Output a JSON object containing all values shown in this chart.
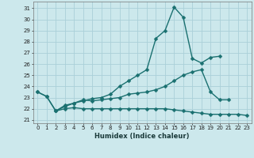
{
  "xlabel": "Humidex (Indice chaleur)",
  "x": [
    0,
    1,
    2,
    3,
    4,
    5,
    6,
    7,
    8,
    9,
    10,
    11,
    12,
    13,
    14,
    15,
    16,
    17,
    18,
    19,
    20,
    21,
    22,
    23
  ],
  "line1_y": [
    23.5,
    23.1,
    21.8,
    22.2,
    22.5,
    22.7,
    22.9,
    23.0,
    23.3,
    24.0,
    24.5,
    25.0,
    25.5,
    28.3,
    29.0,
    31.1,
    30.2,
    26.5,
    26.1,
    26.6,
    26.7,
    null,
    null,
    null
  ],
  "line2_y": [
    23.5,
    23.1,
    21.8,
    22.3,
    22.5,
    22.8,
    22.7,
    22.8,
    22.9,
    23.0,
    23.3,
    23.4,
    23.5,
    23.7,
    24.0,
    24.5,
    25.0,
    25.3,
    25.5,
    23.5,
    22.8,
    22.8,
    null,
    null
  ],
  "line3_y": [
    null,
    null,
    21.8,
    22.0,
    22.1,
    22.0,
    22.0,
    22.0,
    22.0,
    22.0,
    22.0,
    22.0,
    22.0,
    22.0,
    22.0,
    21.9,
    21.8,
    21.7,
    21.6,
    21.5,
    21.5,
    21.5,
    21.5,
    21.4
  ],
  "ylim": [
    20.7,
    31.6
  ],
  "yticks": [
    21,
    22,
    23,
    24,
    25,
    26,
    27,
    28,
    29,
    30,
    31
  ],
  "xlim": [
    -0.5,
    23.5
  ],
  "bg_color": "#cce8ec",
  "grid_color": "#aad0d8",
  "line_color": "#1a7070",
  "markersize": 2.5,
  "linewidth": 1.0,
  "tick_fontsize": 5.0,
  "xlabel_fontsize": 6.0
}
